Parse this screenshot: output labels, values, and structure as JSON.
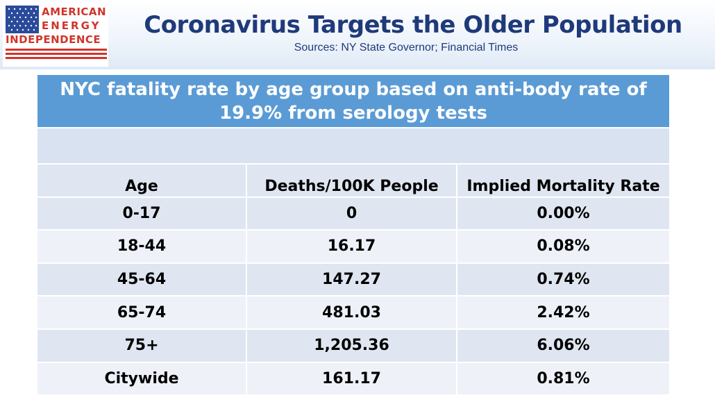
{
  "logo": {
    "line1": "AMERICAN",
    "line2": "ENERGY",
    "line3": "INDEPENDENCE",
    "icon": "us-flag-icon"
  },
  "header": {
    "title": "Coronavirus Targets the Older Population",
    "subtitle": "Sources: NY State Governor; Financial Times"
  },
  "table": {
    "title": "NYC fatality rate by age group based on anti-body rate of 19.9% from serology tests",
    "columns": [
      "Age",
      "Deaths/100K People",
      "Implied Mortality Rate"
    ],
    "rows": [
      [
        "0-17",
        "0",
        "0.00%"
      ],
      [
        "18-44",
        "16.17",
        "0.08%"
      ],
      [
        "45-64",
        "147.27",
        "0.74%"
      ],
      [
        "65-74",
        "481.03",
        "2.42%"
      ],
      [
        "75+",
        "1,205.36",
        "6.06%"
      ],
      [
        "Citywide",
        "161.17",
        "0.81%"
      ]
    ]
  },
  "colors": {
    "title_blue": "#1f3a7a",
    "table_header": "#5b9bd5",
    "logo_red": "#d0342c"
  }
}
